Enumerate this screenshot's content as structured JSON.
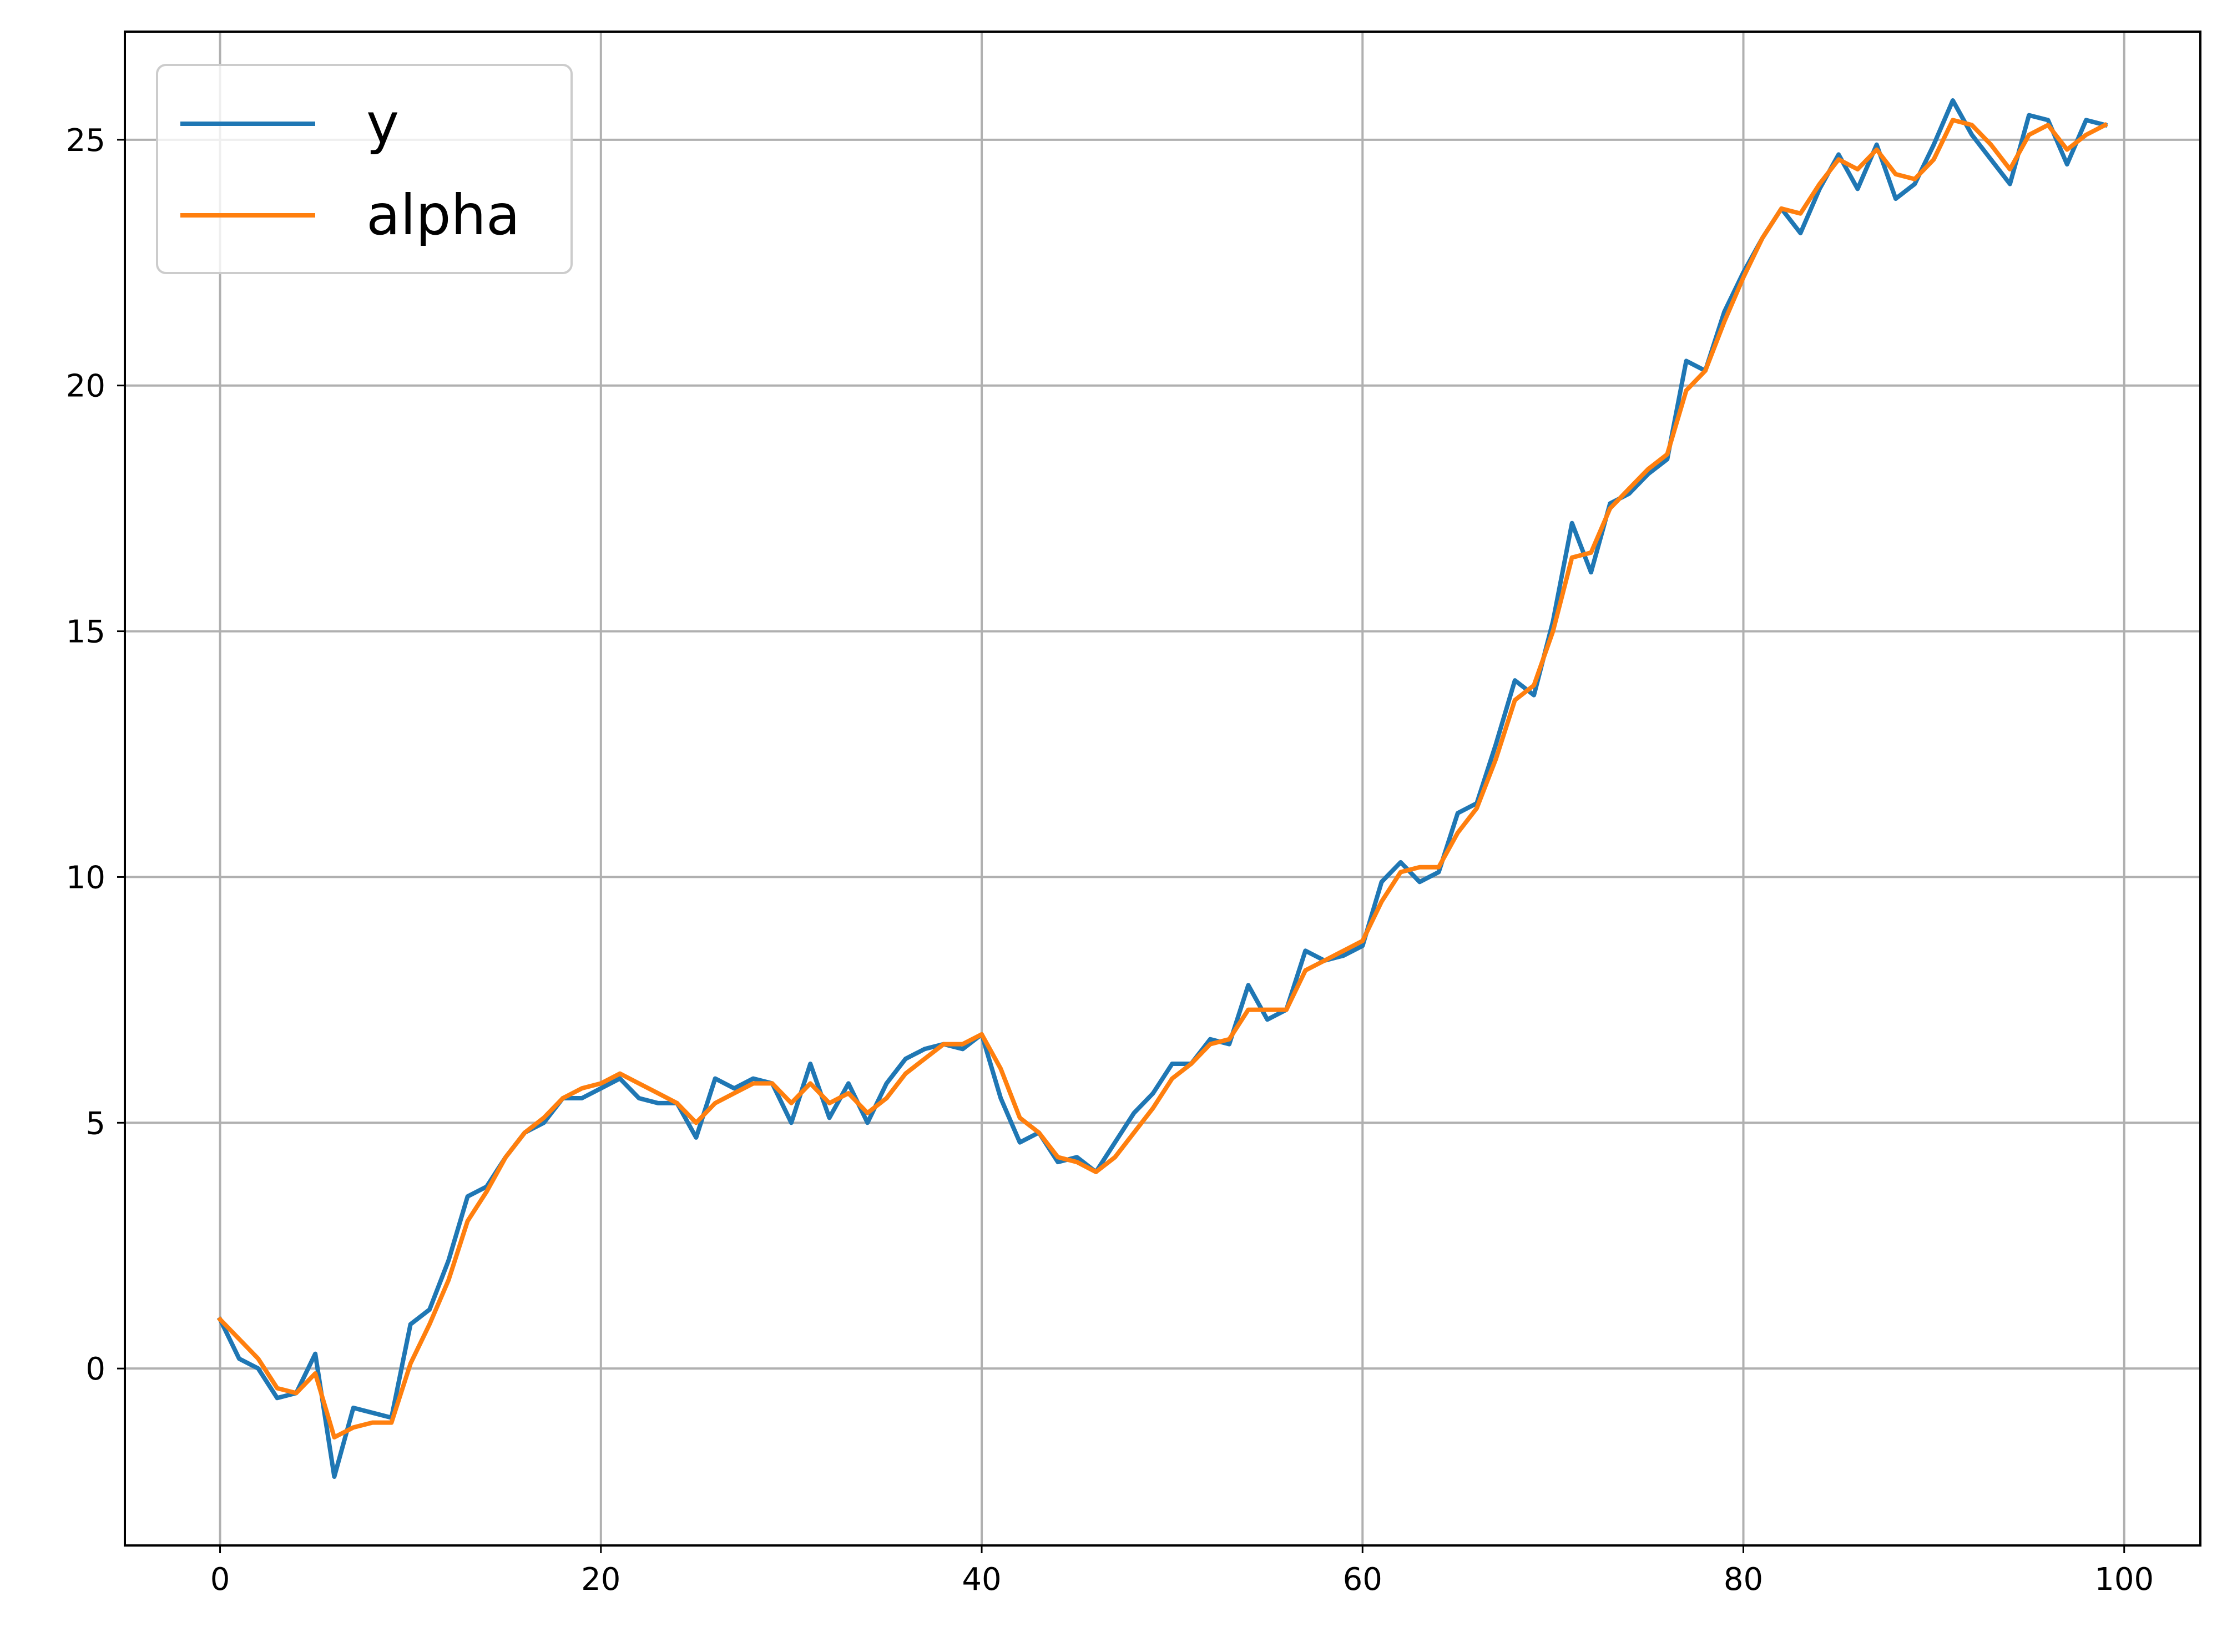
{
  "chart_data": {
    "type": "line",
    "title": "",
    "xlabel": "",
    "ylabel": "",
    "xlim": [
      -5,
      104
    ],
    "ylim": [
      -3.6,
      27.2
    ],
    "grid": true,
    "legend_placement": "top-left",
    "x_ticks": [
      0,
      20,
      40,
      60,
      80,
      100
    ],
    "y_ticks": [
      0,
      5,
      10,
      15,
      20,
      25
    ],
    "x": [
      0,
      1,
      2,
      3,
      4,
      5,
      6,
      7,
      8,
      9,
      10,
      11,
      12,
      13,
      14,
      15,
      16,
      17,
      18,
      19,
      20,
      21,
      22,
      23,
      24,
      25,
      26,
      27,
      28,
      29,
      30,
      31,
      32,
      33,
      34,
      35,
      36,
      37,
      38,
      39,
      40,
      41,
      42,
      43,
      44,
      45,
      46,
      47,
      48,
      49,
      50,
      51,
      52,
      53,
      54,
      55,
      56,
      57,
      58,
      59,
      60,
      61,
      62,
      63,
      64,
      65,
      66,
      67,
      68,
      69,
      70,
      71,
      72,
      73,
      74,
      75,
      76,
      77,
      78,
      79,
      80,
      81,
      82,
      83,
      84,
      85,
      86,
      87,
      88,
      89,
      90,
      91,
      92,
      93,
      94,
      95,
      96,
      97,
      98,
      99
    ],
    "series": [
      {
        "name": "y",
        "color": "#1f77b4",
        "values": [
          1.0,
          0.2,
          0.0,
          -0.6,
          -0.5,
          0.3,
          -2.2,
          -0.8,
          -0.9,
          -1.0,
          0.9,
          1.2,
          2.2,
          3.5,
          3.7,
          4.3,
          4.8,
          5.0,
          5.5,
          5.5,
          5.7,
          5.9,
          5.5,
          5.4,
          5.4,
          4.7,
          5.9,
          5.7,
          5.9,
          5.8,
          5.0,
          6.2,
          5.1,
          5.8,
          5.0,
          5.8,
          6.3,
          6.5,
          6.6,
          6.5,
          6.8,
          5.5,
          4.6,
          4.8,
          4.2,
          4.3,
          4.0,
          4.6,
          5.2,
          5.6,
          6.2,
          6.2,
          6.7,
          6.6,
          7.8,
          7.1,
          7.3,
          8.5,
          8.3,
          8.4,
          8.6,
          9.9,
          10.3,
          9.9,
          10.1,
          11.3,
          11.5,
          12.7,
          14.0,
          13.7,
          15.2,
          17.2,
          16.2,
          17.6,
          17.8,
          18.2,
          18.5,
          20.5,
          20.3,
          21.5,
          22.3,
          23.0,
          23.6,
          23.1,
          24.0,
          24.7,
          24.0,
          24.9,
          23.8,
          24.1,
          24.9,
          25.8,
          25.1,
          24.6,
          24.1,
          25.5,
          25.4,
          24.5,
          25.4,
          25.3
        ]
      },
      {
        "name": "alpha",
        "color": "#ff7f0e",
        "values": [
          1.0,
          0.6,
          0.2,
          -0.4,
          -0.5,
          -0.1,
          -1.4,
          -1.2,
          -1.1,
          -1.1,
          0.1,
          0.9,
          1.8,
          3.0,
          3.6,
          4.3,
          4.8,
          5.1,
          5.5,
          5.7,
          5.8,
          6.0,
          5.8,
          5.6,
          5.4,
          5.0,
          5.4,
          5.6,
          5.8,
          5.8,
          5.4,
          5.8,
          5.4,
          5.6,
          5.2,
          5.5,
          6.0,
          6.3,
          6.6,
          6.6,
          6.8,
          6.1,
          5.1,
          4.8,
          4.3,
          4.2,
          4.0,
          4.3,
          4.8,
          5.3,
          5.9,
          6.2,
          6.6,
          6.7,
          7.3,
          7.3,
          7.3,
          8.1,
          8.3,
          8.5,
          8.7,
          9.5,
          10.1,
          10.2,
          10.2,
          10.9,
          11.4,
          12.4,
          13.6,
          13.9,
          15.0,
          16.5,
          16.6,
          17.5,
          17.9,
          18.3,
          18.6,
          19.9,
          20.3,
          21.3,
          22.2,
          23.0,
          23.6,
          23.5,
          24.1,
          24.6,
          24.4,
          24.8,
          24.3,
          24.2,
          24.6,
          25.4,
          25.3,
          24.9,
          24.4,
          25.1,
          25.3,
          24.8,
          25.1,
          25.3
        ]
      }
    ]
  }
}
